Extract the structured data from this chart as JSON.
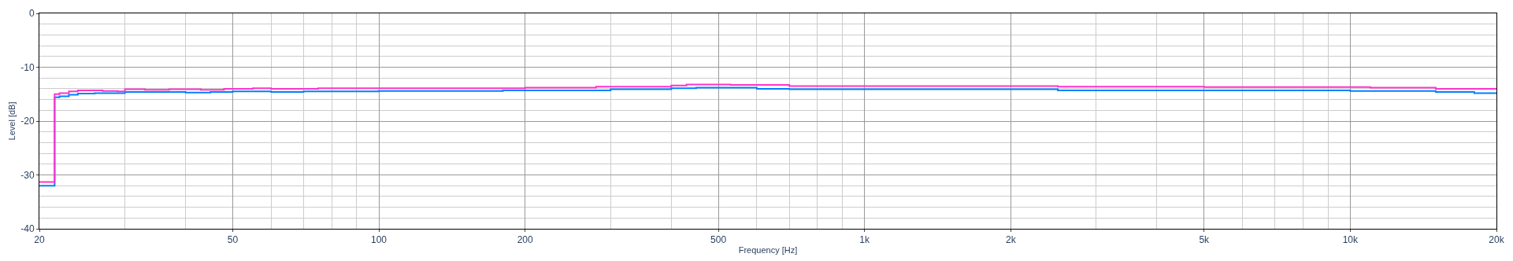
{
  "chart_data": {
    "type": "step",
    "xlabel": "Frequency [Hz]",
    "ylabel": "Level [dB]",
    "log": "x",
    "xlim": [
      20,
      20000
    ],
    "ylim": [
      -40,
      0
    ],
    "xticks": [
      20,
      50,
      100,
      200,
      500,
      {
        "value": 1000,
        "label": "1k"
      },
      {
        "value": 2000,
        "label": "2k"
      },
      {
        "value": 5000,
        "label": "5k"
      },
      {
        "value": 10000,
        "label": "10k"
      },
      {
        "value": 20000,
        "label": "20k"
      }
    ],
    "yticks": [
      -40,
      -30,
      -20,
      -10,
      0
    ],
    "grid": true,
    "marker": "none",
    "line_style": "solid",
    "series": [
      {
        "color": "#0080ff",
        "x": [
          20,
          21.5,
          22,
          23,
          24,
          26,
          30,
          40,
          45,
          50,
          60,
          70,
          100,
          180,
          300,
          400,
          450,
          600,
          700,
          1000,
          2500,
          10000,
          15000,
          18000,
          20000
        ],
        "values": [
          -32,
          -15.6,
          -15.4,
          -15.1,
          -14.9,
          -14.8,
          -14.6,
          -14.7,
          -14.6,
          -14.5,
          -14.6,
          -14.5,
          -14.4,
          -14.3,
          -14.1,
          -13.9,
          -13.8,
          -14.0,
          -14.1,
          -14.1,
          -14.3,
          -14.4,
          -14.6,
          -14.8,
          -14.8
        ]
      },
      {
        "color": "#ff33cc",
        "x": [
          20,
          21.5,
          22,
          23,
          24,
          27,
          29,
          30,
          33,
          37,
          43,
          48,
          55,
          60,
          75,
          100,
          200,
          280,
          400,
          430,
          530,
          700,
          1000,
          2500,
          5000,
          11000,
          15000,
          20000
        ],
        "values": [
          -31.3,
          -15.0,
          -14.8,
          -14.5,
          -14.3,
          -14.4,
          -14.5,
          -14.1,
          -14.2,
          -14.1,
          -14.2,
          -14.0,
          -13.9,
          -14.0,
          -13.9,
          -13.9,
          -13.8,
          -13.6,
          -13.4,
          -13.2,
          -13.3,
          -13.5,
          -13.5,
          -13.6,
          -13.7,
          -13.8,
          -14.0,
          -14.0
        ]
      }
    ]
  }
}
